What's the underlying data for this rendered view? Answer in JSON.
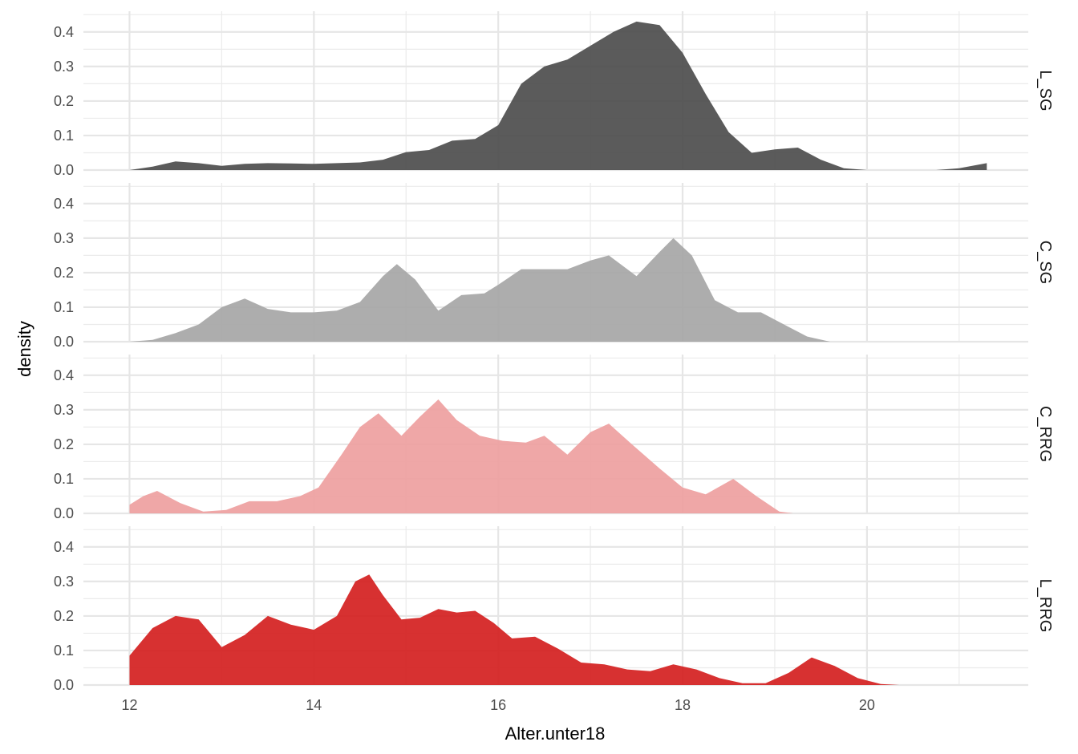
{
  "chart_data": {
    "type": "area",
    "xlabel": "Alter.unter18",
    "ylabel": "density",
    "xlim": [
      11.5,
      21.75
    ],
    "ylim": [
      0,
      0.46
    ],
    "x_ticks": [
      12,
      14,
      16,
      18,
      20
    ],
    "y_ticks": [
      0.0,
      0.1,
      0.2,
      0.3,
      0.4
    ],
    "grid": true,
    "legend": "none",
    "facets": [
      {
        "strip": "L_SG",
        "color": "#4d4d4d",
        "x": [
          12.0,
          12.25,
          12.5,
          12.75,
          13.0,
          13.25,
          13.5,
          13.75,
          14.0,
          14.25,
          14.5,
          14.75,
          15.0,
          15.25,
          15.5,
          15.75,
          16.0,
          16.25,
          16.5,
          16.75,
          17.0,
          17.25,
          17.5,
          17.75,
          18.0,
          18.25,
          18.5,
          18.75,
          19.0,
          19.25,
          19.5,
          19.75,
          20.0,
          20.25,
          20.5,
          20.75,
          21.0,
          21.3
        ],
        "values": [
          0.0,
          0.01,
          0.025,
          0.02,
          0.012,
          0.018,
          0.02,
          0.019,
          0.018,
          0.02,
          0.022,
          0.03,
          0.052,
          0.058,
          0.085,
          0.09,
          0.13,
          0.25,
          0.3,
          0.32,
          0.36,
          0.4,
          0.43,
          0.42,
          0.34,
          0.22,
          0.11,
          0.05,
          0.06,
          0.065,
          0.03,
          0.005,
          0.0,
          0.0,
          0.0,
          0.0,
          0.005,
          0.02
        ]
      },
      {
        "strip": "C_SG",
        "color": "#a6a6a6",
        "x": [
          12.0,
          12.25,
          12.5,
          12.75,
          13.0,
          13.25,
          13.5,
          13.75,
          14.0,
          14.25,
          14.5,
          14.75,
          14.9,
          15.1,
          15.35,
          15.6,
          15.85,
          16.0,
          16.25,
          16.5,
          16.75,
          17.0,
          17.2,
          17.5,
          17.75,
          17.9,
          18.1,
          18.35,
          18.6,
          18.85,
          19.1,
          19.35,
          19.6
        ],
        "values": [
          0.0,
          0.005,
          0.025,
          0.05,
          0.1,
          0.125,
          0.095,
          0.085,
          0.085,
          0.09,
          0.115,
          0.19,
          0.225,
          0.18,
          0.09,
          0.135,
          0.14,
          0.165,
          0.21,
          0.21,
          0.21,
          0.235,
          0.25,
          0.19,
          0.26,
          0.3,
          0.25,
          0.12,
          0.085,
          0.085,
          0.05,
          0.015,
          0.0
        ]
      },
      {
        "strip": "C_RRG",
        "color": "#eea0a0",
        "x": [
          12.0,
          12.15,
          12.3,
          12.55,
          12.8,
          13.05,
          13.3,
          13.6,
          13.85,
          14.05,
          14.3,
          14.5,
          14.7,
          14.95,
          15.15,
          15.35,
          15.55,
          15.8,
          16.05,
          16.3,
          16.5,
          16.75,
          17.0,
          17.2,
          17.45,
          17.75,
          18.0,
          18.25,
          18.55,
          18.8,
          19.05,
          19.2
        ],
        "values": [
          0.025,
          0.05,
          0.065,
          0.03,
          0.005,
          0.01,
          0.035,
          0.035,
          0.05,
          0.075,
          0.17,
          0.25,
          0.29,
          0.225,
          0.28,
          0.33,
          0.27,
          0.225,
          0.21,
          0.205,
          0.225,
          0.17,
          0.235,
          0.26,
          0.2,
          0.13,
          0.075,
          0.055,
          0.1,
          0.05,
          0.005,
          0.0
        ]
      },
      {
        "strip": "L_RRG",
        "color": "#d42020",
        "x": [
          12.0,
          12.25,
          12.5,
          12.75,
          13.0,
          13.25,
          13.5,
          13.75,
          14.0,
          14.25,
          14.45,
          14.6,
          14.75,
          14.95,
          15.15,
          15.35,
          15.55,
          15.75,
          15.95,
          16.15,
          16.4,
          16.65,
          16.9,
          17.15,
          17.4,
          17.65,
          17.9,
          18.15,
          18.4,
          18.65,
          18.9,
          19.15,
          19.4,
          19.65,
          19.9,
          20.15,
          20.35
        ],
        "values": [
          0.085,
          0.165,
          0.2,
          0.19,
          0.11,
          0.145,
          0.2,
          0.175,
          0.16,
          0.2,
          0.3,
          0.32,
          0.26,
          0.19,
          0.195,
          0.22,
          0.21,
          0.215,
          0.18,
          0.135,
          0.14,
          0.105,
          0.065,
          0.06,
          0.045,
          0.04,
          0.06,
          0.045,
          0.02,
          0.005,
          0.005,
          0.035,
          0.08,
          0.055,
          0.02,
          0.003,
          0.0
        ]
      }
    ]
  }
}
